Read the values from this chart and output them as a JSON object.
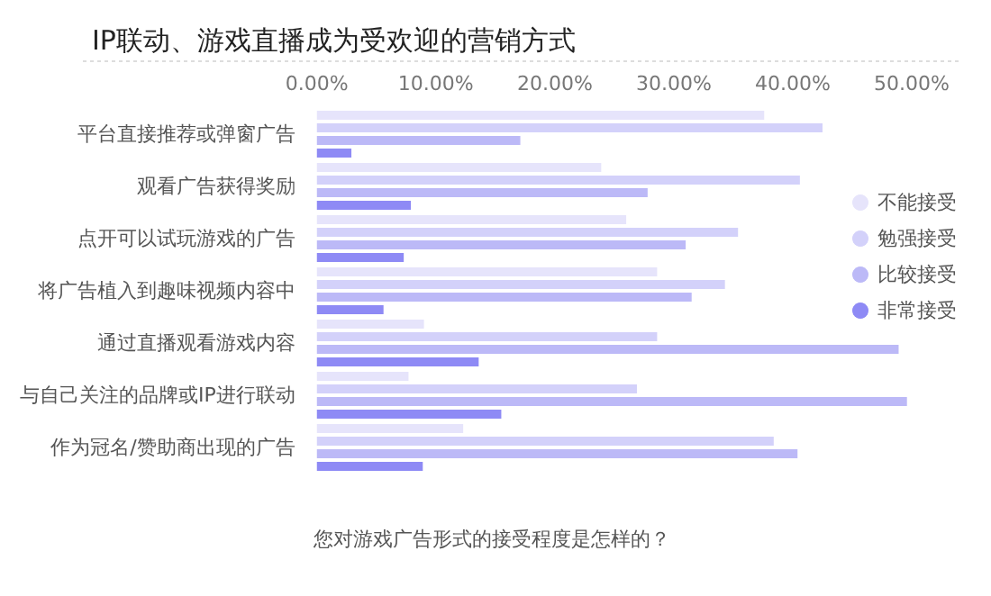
{
  "chart_data": {
    "type": "bar",
    "orientation": "horizontal",
    "title": "IP联动、游戏直播成为受欢迎的营销方式",
    "annotations": [
      "您对游戏广告形式的接受程度是怎样的？"
    ],
    "categories": [
      "平台直接推荐或弹窗广告",
      "观看广告获得奖励",
      "点开可以试玩游戏的广告",
      "将广告植入到趣味视频内容中",
      "通过直播观看游戏内容",
      "与自己关注的品牌或IP进行联动",
      "作为冠名/赞助商出现的广告"
    ],
    "series": [
      {
        "name": "不能接受",
        "color": "#e6e4fb",
        "values": [
          37.6,
          23.9,
          26,
          28.6,
          9.0,
          7.7,
          12.3
        ]
      },
      {
        "name": "勉强接受",
        "color": "#d3d1fa",
        "values": [
          42.5,
          40.6,
          35.4,
          34.3,
          28.6,
          26.9,
          38.4
        ]
      },
      {
        "name": "比较接受",
        "color": "#bcb9f7",
        "values": [
          17.1,
          27.8,
          31.0,
          31.5,
          48.9,
          49.6,
          40.4
        ]
      },
      {
        "name": "非常接受",
        "color": "#8e8af5",
        "values": [
          2.9,
          7.9,
          7.3,
          5.6,
          13.6,
          15.5,
          8.9
        ]
      }
    ],
    "xlim": [
      0,
      50
    ],
    "xticks": [
      {
        "value": 0,
        "label": "0.00%"
      },
      {
        "value": 10,
        "label": "10.00%"
      },
      {
        "value": 20,
        "label": "20.00%"
      },
      {
        "value": 30,
        "label": "30.00%"
      },
      {
        "value": 40,
        "label": "40.00%"
      },
      {
        "value": 50,
        "label": "50.00%"
      }
    ],
    "grid": false,
    "legend": "right",
    "marker": "circle"
  }
}
